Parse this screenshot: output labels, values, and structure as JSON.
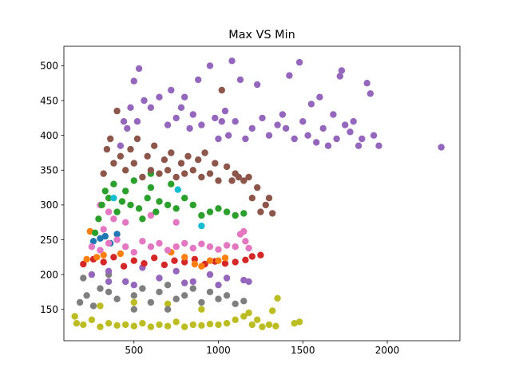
{
  "chart_data": {
    "type": "scatter",
    "title": "Max VS Min",
    "xlabel": "",
    "ylabel": "",
    "xlim": [
      85,
      2430
    ],
    "ylim": [
      105,
      528
    ],
    "x_ticks": [
      500,
      1000,
      1500,
      2000
    ],
    "y_ticks": [
      150,
      200,
      250,
      300,
      350,
      400,
      450,
      500
    ],
    "grid": false,
    "legend": "none",
    "series": [
      {
        "color": "#bcbd22",
        "points": [
          [
            150,
            140
          ],
          [
            160,
            130
          ],
          [
            200,
            128
          ],
          [
            250,
            135
          ],
          [
            300,
            125
          ],
          [
            350,
            130
          ],
          [
            400,
            127
          ],
          [
            450,
            128
          ],
          [
            500,
            126
          ],
          [
            550,
            130
          ],
          [
            600,
            125
          ],
          [
            650,
            128
          ],
          [
            700,
            126
          ],
          [
            750,
            132
          ],
          [
            800,
            125
          ],
          [
            850,
            128
          ],
          [
            900,
            127
          ],
          [
            950,
            129
          ],
          [
            1000,
            128
          ],
          [
            1050,
            130
          ],
          [
            1100,
            135
          ],
          [
            1150,
            140
          ],
          [
            1180,
            145
          ],
          [
            1200,
            128
          ],
          [
            1230,
            135
          ],
          [
            1260,
            125
          ],
          [
            1300,
            128
          ],
          [
            1320,
            148
          ],
          [
            1340,
            126
          ],
          [
            1350,
            166
          ],
          [
            1450,
            130
          ],
          [
            1480,
            132
          ],
          [
            300,
            155
          ],
          [
            500,
            160
          ],
          [
            700,
            158
          ],
          [
            900,
            150
          ]
        ]
      },
      {
        "color": "#7f7f7f",
        "points": [
          [
            180,
            160
          ],
          [
            220,
            170
          ],
          [
            260,
            155
          ],
          [
            300,
            180
          ],
          [
            350,
            175
          ],
          [
            400,
            165
          ],
          [
            450,
            190
          ],
          [
            500,
            170
          ],
          [
            550,
            180
          ],
          [
            600,
            160
          ],
          [
            650,
            175
          ],
          [
            700,
            185
          ],
          [
            750,
            165
          ],
          [
            800,
            170
          ],
          [
            850,
            180
          ],
          [
            900,
            160
          ],
          [
            950,
            175
          ],
          [
            1000,
            165
          ],
          [
            1050,
            170
          ],
          [
            1100,
            158
          ],
          [
            1150,
            162
          ],
          [
            200,
            195
          ],
          [
            350,
            200
          ],
          [
            500,
            150
          ],
          [
            700,
            150
          ]
        ]
      },
      {
        "color": "#9467bd",
        "points": [
          [
            250,
            200
          ],
          [
            350,
            205
          ],
          [
            450,
            190
          ],
          [
            550,
            210
          ],
          [
            650,
            195
          ],
          [
            750,
            205
          ],
          [
            850,
            190
          ],
          [
            950,
            200
          ],
          [
            1050,
            195
          ],
          [
            1150,
            192
          ],
          [
            500,
            185
          ],
          [
            800,
            188
          ],
          [
            350,
            190
          ],
          [
            1000,
            185
          ],
          [
            1180,
            190
          ]
        ]
      },
      {
        "color": "#d62728",
        "points": [
          [
            200,
            215
          ],
          [
            260,
            222
          ],
          [
            320,
            218
          ],
          [
            380,
            225
          ],
          [
            440,
            212
          ],
          [
            500,
            220
          ],
          [
            560,
            216
          ],
          [
            620,
            224
          ],
          [
            680,
            214
          ],
          [
            740,
            220
          ],
          [
            800,
            218
          ],
          [
            860,
            222
          ],
          [
            920,
            215
          ],
          [
            980,
            219
          ],
          [
            1040,
            216
          ],
          [
            1100,
            218
          ],
          [
            1160,
            221
          ],
          [
            1200,
            226
          ],
          [
            1250,
            228
          ]
        ]
      },
      {
        "color": "#ff7f0e",
        "points": [
          [
            220,
            222
          ],
          [
            240,
            262
          ],
          [
            280,
            225
          ],
          [
            320,
            228
          ],
          [
            420,
            230
          ],
          [
            720,
            232
          ],
          [
            800,
            225
          ],
          [
            860,
            215
          ],
          [
            900,
            212
          ],
          [
            950,
            220
          ],
          [
            1000,
            220
          ],
          [
            1040,
            224
          ]
        ]
      },
      {
        "color": "#1f77b4",
        "points": [
          [
            260,
            248
          ],
          [
            300,
            252
          ],
          [
            330,
            255
          ],
          [
            360,
            245
          ],
          [
            400,
            258
          ]
        ]
      },
      {
        "color": "#e377c2",
        "points": [
          [
            250,
            240
          ],
          [
            300,
            235
          ],
          [
            350,
            245
          ],
          [
            400,
            250
          ],
          [
            450,
            240
          ],
          [
            500,
            232
          ],
          [
            550,
            248
          ],
          [
            600,
            240
          ],
          [
            650,
            245
          ],
          [
            700,
            235
          ],
          [
            750,
            240
          ],
          [
            800,
            245
          ],
          [
            850,
            238
          ],
          [
            900,
            244
          ],
          [
            950,
            240
          ],
          [
            1000,
            236
          ],
          [
            1050,
            242
          ],
          [
            1100,
            240
          ],
          [
            1130,
            258
          ],
          [
            1150,
            262
          ],
          [
            1160,
            248
          ],
          [
            1180,
            238
          ],
          [
            320,
            265
          ],
          [
            380,
            280
          ],
          [
            450,
            275
          ],
          [
            300,
            300
          ],
          [
            350,
            290
          ],
          [
            600,
            285
          ],
          [
            750,
            275
          ]
        ]
      },
      {
        "color": "#2ca02c",
        "points": [
          [
            270,
            260
          ],
          [
            290,
            280
          ],
          [
            310,
            300
          ],
          [
            330,
            320
          ],
          [
            350,
            310
          ],
          [
            380,
            330
          ],
          [
            400,
            290
          ],
          [
            430,
            305
          ],
          [
            450,
            320
          ],
          [
            480,
            300
          ],
          [
            500,
            335
          ],
          [
            530,
            295
          ],
          [
            550,
            280
          ],
          [
            580,
            310
          ],
          [
            600,
            325
          ],
          [
            630,
            290
          ],
          [
            650,
            305
          ],
          [
            700,
            300
          ],
          [
            750,
            295
          ],
          [
            800,
            310
          ],
          [
            850,
            300
          ],
          [
            900,
            285
          ],
          [
            950,
            290
          ],
          [
            1000,
            295
          ],
          [
            1050,
            290
          ],
          [
            1100,
            285
          ],
          [
            1150,
            288
          ],
          [
            600,
            345
          ],
          [
            720,
            330
          ]
        ]
      },
      {
        "color": "#17becf",
        "points": [
          [
            380,
            310
          ],
          [
            760,
            322
          ],
          [
            900,
            270
          ]
        ]
      },
      {
        "color": "#8c564b",
        "points": [
          [
            320,
            345
          ],
          [
            340,
            380
          ],
          [
            360,
            395
          ],
          [
            380,
            360
          ],
          [
            400,
            435
          ],
          [
            420,
            370
          ],
          [
            450,
            350
          ],
          [
            480,
            380
          ],
          [
            500,
            360
          ],
          [
            520,
            395
          ],
          [
            550,
            340
          ],
          [
            580,
            370
          ],
          [
            600,
            350
          ],
          [
            620,
            385
          ],
          [
            650,
            345
          ],
          [
            680,
            365
          ],
          [
            700,
            350
          ],
          [
            720,
            375
          ],
          [
            750,
            340
          ],
          [
            780,
            360
          ],
          [
            800,
            345
          ],
          [
            820,
            370
          ],
          [
            850,
            350
          ],
          [
            880,
            365
          ],
          [
            900,
            340
          ],
          [
            920,
            375
          ],
          [
            950,
            345
          ],
          [
            980,
            360
          ],
          [
            1000,
            335
          ],
          [
            1020,
            465
          ],
          [
            1050,
            355
          ],
          [
            1080,
            335
          ],
          [
            1100,
            345
          ],
          [
            1120,
            340
          ],
          [
            1150,
            335
          ],
          [
            1180,
            340
          ],
          [
            1200,
            310
          ],
          [
            1230,
            325
          ],
          [
            1250,
            290
          ],
          [
            1280,
            300
          ],
          [
            1300,
            310
          ],
          [
            1320,
            288
          ]
        ]
      },
      {
        "color": "#9467bd",
        "points": [
          [
            420,
            385
          ],
          [
            440,
            420
          ],
          [
            460,
            410
          ],
          [
            480,
            440
          ],
          [
            500,
            478
          ],
          [
            520,
            420
          ],
          [
            530,
            496
          ],
          [
            560,
            450
          ],
          [
            600,
            440
          ],
          [
            650,
            455
          ],
          [
            700,
            415
          ],
          [
            720,
            465
          ],
          [
            750,
            425
          ],
          [
            780,
            440
          ],
          [
            800,
            455
          ],
          [
            830,
            410
          ],
          [
            850,
            430
          ],
          [
            880,
            480
          ],
          [
            900,
            415
          ],
          [
            950,
            500
          ],
          [
            980,
            425
          ],
          [
            1000,
            395
          ],
          [
            1020,
            420
          ],
          [
            1040,
            435
          ],
          [
            1060,
            400
          ],
          [
            1080,
            507
          ],
          [
            1100,
            420
          ],
          [
            1130,
            480
          ],
          [
            1160,
            395
          ],
          [
            1200,
            410
          ],
          [
            1230,
            473
          ],
          [
            1260,
            425
          ],
          [
            1300,
            400
          ],
          [
            1350,
            415
          ],
          [
            1380,
            430
          ],
          [
            1400,
            410
          ],
          [
            1420,
            486
          ],
          [
            1450,
            395
          ],
          [
            1480,
            505
          ],
          [
            1500,
            420
          ],
          [
            1530,
            400
          ],
          [
            1550,
            445
          ],
          [
            1580,
            390
          ],
          [
            1600,
            455
          ],
          [
            1620,
            410
          ],
          [
            1650,
            385
          ],
          [
            1680,
            430
          ],
          [
            1700,
            395
          ],
          [
            1720,
            485
          ],
          [
            1730,
            493
          ],
          [
            1750,
            415
          ],
          [
            1780,
            405
          ],
          [
            1800,
            420
          ],
          [
            1830,
            385
          ],
          [
            1850,
            395
          ],
          [
            1880,
            475
          ],
          [
            1900,
            460
          ],
          [
            1920,
            400
          ],
          [
            1950,
            385
          ],
          [
            2320,
            383
          ]
        ]
      }
    ]
  }
}
